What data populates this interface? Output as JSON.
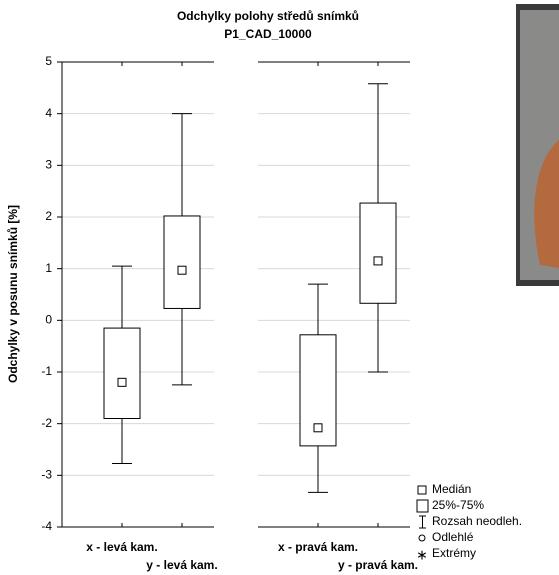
{
  "chart_data": {
    "type": "box",
    "title": "Odchylky polohy středů snímků",
    "subtitle": "P1_CAD_10000",
    "y_label": "Odchylky v posunu snímků  [%]",
    "categories": [
      "x - levá kam.",
      "y - levá kam.",
      "x - pravá kam.",
      "y - pravá kam."
    ],
    "boxes": [
      {
        "min": -2.77,
        "q1": -1.9,
        "median": -1.2,
        "q3": -0.15,
        "max": 1.05
      },
      {
        "min": -1.25,
        "q1": 0.23,
        "median": 0.97,
        "q3": 2.02,
        "max": 4.0
      },
      {
        "min": -3.33,
        "q1": -2.43,
        "median": -2.08,
        "q3": -0.28,
        "max": 0.7
      },
      {
        "min": -1.0,
        "q1": 0.33,
        "median": 1.15,
        "q3": 2.27,
        "max": 4.58
      }
    ],
    "ylim": [
      -4,
      5
    ],
    "yticks": [
      -4,
      -3,
      -2,
      -1,
      0,
      1,
      2,
      3,
      4,
      5
    ],
    "grid": true,
    "legend": [
      "Medián",
      "25%-75%",
      "Rozsah neodleh.",
      "Odlehlé",
      "Extrémy"
    ]
  }
}
